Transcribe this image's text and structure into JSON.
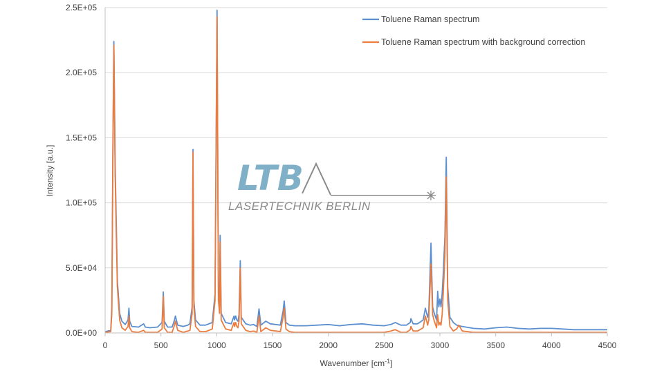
{
  "chart_data": {
    "type": "line",
    "title": "",
    "xlabel": "Wavenumber [cm",
    "xlabel_sup": "-1",
    "xlabel_end": "]",
    "ylabel": "Intensity [a.u.]",
    "xlim": [
      0,
      4500
    ],
    "ylim": [
      0,
      250000
    ],
    "xticks": [
      0,
      500,
      1000,
      1500,
      2000,
      2500,
      3000,
      3500,
      4000,
      4500
    ],
    "xtick_labels": [
      "0",
      "500",
      "1000",
      "1500",
      "2000",
      "2500",
      "3000",
      "3500",
      "4000",
      "4500"
    ],
    "yticks": [
      0,
      50000,
      100000,
      150000,
      200000,
      250000
    ],
    "ytick_labels": [
      "0.0E+00",
      "5.0E+04",
      "1.0E+05",
      "1.5E+05",
      "2.0E+05",
      "2.5E+05"
    ],
    "grid": "horizontal",
    "legend_position": "top-right",
    "series": [
      {
        "name": "Toluene Raman spectrum",
        "color": "#5b8fd0",
        "x": [
          0,
          50,
          60,
          70,
          78,
          90,
          110,
          130,
          150,
          180,
          205,
          213,
          220,
          240,
          300,
          345,
          360,
          400,
          470,
          510,
          521,
          530,
          560,
          600,
          622,
          630,
          650,
          700,
          740,
          760,
          780,
          787,
          795,
          810,
          850,
          900,
          960,
          985,
          1003,
          1015,
          1025,
          1031,
          1040,
          1080,
          1130,
          1155,
          1160,
          1170,
          1180,
          1190,
          1200,
          1211,
          1220,
          1260,
          1300,
          1330,
          1360,
          1379,
          1395,
          1440,
          1480,
          1530,
          1570,
          1595,
          1605,
          1620,
          1650,
          1700,
          1800,
          1900,
          2000,
          2100,
          2200,
          2300,
          2400,
          2500,
          2560,
          2600,
          2650,
          2700,
          2735,
          2740,
          2760,
          2800,
          2850,
          2870,
          2890,
          2900,
          2920,
          2935,
          2950,
          2970,
          2980,
          2990,
          3000,
          3010,
          3020,
          3030,
          3045,
          3057,
          3070,
          3090,
          3120,
          3150,
          3170,
          3200,
          3300,
          3400,
          3500,
          3600,
          3700,
          3800,
          3900,
          4000,
          4100,
          4200,
          4300,
          4400,
          4500
        ],
        "y": [
          1000,
          2000,
          20000,
          150000,
          224000,
          130000,
          40000,
          15000,
          9000,
          6500,
          10000,
          19000,
          9000,
          5000,
          4500,
          7000,
          4500,
          4000,
          4500,
          8000,
          31500,
          9000,
          4500,
          4500,
          10000,
          13000,
          6000,
          5000,
          6000,
          7000,
          20000,
          141000,
          25000,
          10000,
          6000,
          6000,
          8000,
          30000,
          248000,
          30000,
          20000,
          75000,
          15000,
          8000,
          7000,
          13000,
          10000,
          13000,
          10000,
          9000,
          14000,
          55500,
          12000,
          7000,
          6000,
          6500,
          5000,
          18500,
          6000,
          9000,
          7000,
          6500,
          6000,
          17000,
          24500,
          8000,
          6000,
          5500,
          5500,
          6000,
          6500,
          5500,
          6500,
          7000,
          6000,
          5500,
          6500,
          8000,
          6000,
          6000,
          8000,
          11000,
          7000,
          7000,
          10000,
          19000,
          12000,
          16000,
          69000,
          20000,
          15000,
          10000,
          32000,
          20000,
          26000,
          20000,
          30000,
          45000,
          75000,
          135000,
          35000,
          12000,
          8000,
          6000,
          5500,
          5000,
          3500,
          3000,
          4000,
          4500,
          3500,
          3000,
          3500,
          3500,
          3000,
          2500,
          2500,
          2500,
          2500
        ]
      },
      {
        "name": "Toluene Raman spectrum with background correction",
        "color": "#ec7c3e",
        "x": [
          0,
          50,
          60,
          70,
          78,
          90,
          110,
          130,
          150,
          180,
          205,
          213,
          220,
          240,
          300,
          345,
          360,
          400,
          470,
          510,
          521,
          530,
          560,
          600,
          622,
          630,
          650,
          700,
          740,
          760,
          780,
          787,
          795,
          810,
          850,
          900,
          960,
          985,
          1003,
          1015,
          1025,
          1031,
          1040,
          1080,
          1130,
          1155,
          1160,
          1170,
          1180,
          1190,
          1200,
          1211,
          1220,
          1260,
          1300,
          1330,
          1360,
          1379,
          1395,
          1440,
          1480,
          1530,
          1570,
          1595,
          1605,
          1620,
          1650,
          1700,
          1800,
          1900,
          2000,
          2100,
          2200,
          2300,
          2400,
          2500,
          2560,
          2600,
          2650,
          2700,
          2735,
          2740,
          2760,
          2800,
          2850,
          2870,
          2890,
          2900,
          2920,
          2935,
          2950,
          2970,
          2980,
          2990,
          3000,
          3010,
          3020,
          3030,
          3045,
          3057,
          3070,
          3090,
          3120,
          3150,
          3170,
          3200,
          3300,
          3400,
          3500,
          3600,
          3700,
          3800,
          3900,
          4000,
          4100,
          4200,
          4300,
          4400,
          4500
        ],
        "y": [
          500,
          1000,
          15000,
          140000,
          221000,
          120000,
          35000,
          10000,
          4000,
          2000,
          5000,
          13000,
          4000,
          1000,
          500,
          2000,
          500,
          500,
          500,
          3000,
          28000,
          4000,
          500,
          500,
          6000,
          9000,
          2000,
          500,
          1500,
          2000,
          15000,
          139000,
          20000,
          5000,
          1000,
          1000,
          3000,
          25000,
          243000,
          25000,
          15000,
          70000,
          10000,
          3000,
          2000,
          8000,
          5000,
          8000,
          5000,
          4000,
          9000,
          50000,
          7000,
          2000,
          1000,
          1500,
          500,
          13000,
          1000,
          4000,
          2000,
          1500,
          1000,
          12000,
          19000,
          3000,
          1000,
          500,
          500,
          500,
          500,
          500,
          500,
          500,
          500,
          500,
          1500,
          2500,
          500,
          500,
          2500,
          5000,
          1500,
          1500,
          4000,
          13000,
          6000,
          10000,
          53000,
          14000,
          9000,
          4000,
          14000,
          6000,
          8000,
          6000,
          14000,
          30000,
          60000,
          120000,
          25000,
          5000,
          1500,
          3000,
          6000,
          1500,
          500,
          500,
          500,
          500,
          500,
          500,
          500,
          500,
          500,
          500,
          500,
          500,
          500
        ]
      }
    ]
  },
  "logo": {
    "mark": "LTB",
    "text": "LASERTECHNIK BERLIN",
    "color": "#7fb0c8"
  }
}
